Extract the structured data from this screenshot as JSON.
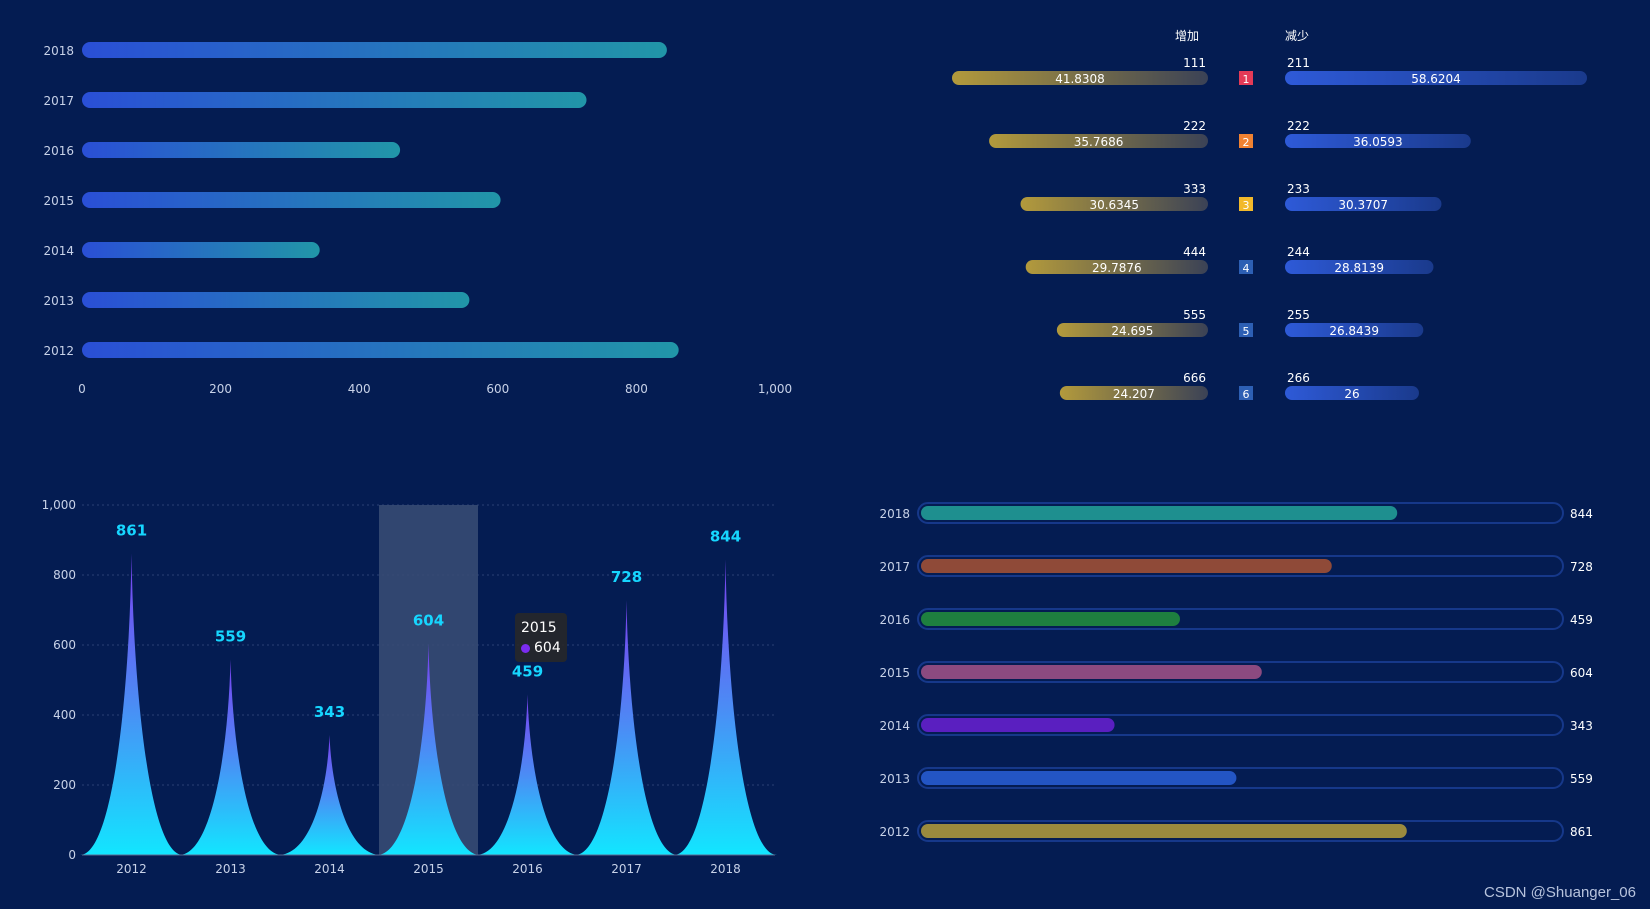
{
  "colors": {
    "background": "#041c52",
    "bar_start": "#2a4fd6",
    "bar_end": "#2196a8",
    "gold": "#b39a3c",
    "blue": "#2e5ad8",
    "spike_top": "#7b3ff0",
    "spike_bottom": "#12e6ff",
    "label_cyan": "#16d6ff",
    "highlight": "#3a4e76"
  },
  "chart_data": [
    {
      "type": "bar",
      "orientation": "horizontal",
      "categories": [
        "2018",
        "2017",
        "2016",
        "2015",
        "2014",
        "2013",
        "2012"
      ],
      "values": [
        844,
        728,
        459,
        604,
        343,
        559,
        861
      ],
      "xlim": [
        0,
        1000
      ],
      "xticks": [
        "0",
        "200",
        "400",
        "600",
        "800",
        "1,000"
      ]
    },
    {
      "type": "bar",
      "orientation": "diverging",
      "headers": {
        "left": "增加",
        "right": "减少"
      },
      "rows": [
        {
          "rank": "1",
          "left_count": "111",
          "left_value": 41.8308,
          "left_label": "41.8308",
          "right_count": "211",
          "right_value": 58.6204,
          "right_label": "58.6204",
          "rank_color": "#e43a57"
        },
        {
          "rank": "2",
          "left_count": "222",
          "left_value": 35.7686,
          "left_label": "35.7686",
          "right_count": "222",
          "right_value": 36.0593,
          "right_label": "36.0593",
          "rank_color": "#f08232"
        },
        {
          "rank": "3",
          "left_count": "333",
          "left_value": 30.6345,
          "left_label": "30.6345",
          "right_count": "233",
          "right_value": 30.3707,
          "right_label": "30.3707",
          "rank_color": "#f2b92b"
        },
        {
          "rank": "4",
          "left_count": "444",
          "left_value": 29.7876,
          "left_label": "29.7876",
          "right_count": "244",
          "right_value": 28.8139,
          "right_label": "28.8139",
          "rank_color": "#2d5fb4"
        },
        {
          "rank": "5",
          "left_count": "555",
          "left_value": 24.695,
          "left_label": "24.695",
          "right_count": "255",
          "right_value": 26.8439,
          "right_label": "26.8439",
          "rank_color": "#2d5fb4"
        },
        {
          "rank": "6",
          "left_count": "666",
          "left_value": 24.207,
          "left_label": "24.207",
          "right_count": "266",
          "right_value": 26,
          "right_label": "26",
          "rank_color": "#2d5fb4"
        }
      ],
      "max_value": 60
    },
    {
      "type": "bar",
      "style": "pictorial-spike",
      "categories": [
        "2012",
        "2013",
        "2014",
        "2015",
        "2016",
        "2017",
        "2018"
      ],
      "values": [
        861,
        559,
        343,
        604,
        459,
        728,
        844
      ],
      "labels": [
        "861",
        "559",
        "343",
        "604",
        "459",
        "728",
        "844"
      ],
      "ylim": [
        0,
        1000
      ],
      "yticks": [
        "0",
        "200",
        "400",
        "600",
        "800",
        "1,000"
      ],
      "highlighted": "2015",
      "tooltip": {
        "title": "2015",
        "value": "604"
      }
    },
    {
      "type": "bar",
      "orientation": "horizontal",
      "style": "progress",
      "rows": [
        {
          "year": "2018",
          "value": 844,
          "label": "844",
          "color": "#1e8f8f"
        },
        {
          "year": "2017",
          "value": 728,
          "label": "728",
          "color": "#8f4a38"
        },
        {
          "year": "2016",
          "value": 459,
          "label": "459",
          "color": "#1e7f3f"
        },
        {
          "year": "2015",
          "value": 604,
          "label": "604",
          "color": "#8b4a80"
        },
        {
          "year": "2014",
          "value": 343,
          "label": "343",
          "color": "#5a1fc0"
        },
        {
          "year": "2013",
          "value": 559,
          "label": "559",
          "color": "#2355c4"
        },
        {
          "year": "2012",
          "value": 861,
          "label": "861",
          "color": "#9a8a3e"
        }
      ],
      "max_value": 1000
    }
  ],
  "watermark": "CSDN @Shuanger_06"
}
